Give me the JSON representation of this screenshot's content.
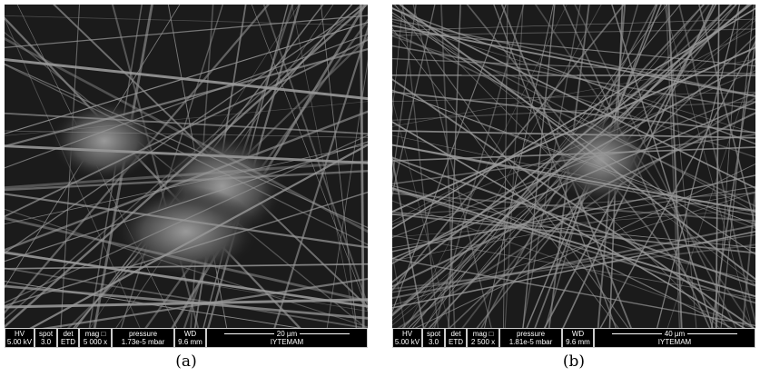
{
  "panels": [
    {
      "caption": "(a)",
      "info_bar": {
        "columns": [
          {
            "header": "HV",
            "value": "5.00 kV"
          },
          {
            "header": "spot",
            "value": "3.0"
          },
          {
            "header": "det",
            "value": "ETD"
          },
          {
            "header": "mag □",
            "value": "5 000 x"
          },
          {
            "header": "pressure",
            "value": "1.73e-5 mbar"
          },
          {
            "header": "WD",
            "value": "9.6 mm"
          }
        ],
        "scale_bar": "20 µm",
        "facility": "IYTEMAM"
      }
    },
    {
      "caption": "(b)",
      "info_bar": {
        "columns": [
          {
            "header": "HV",
            "value": "5.00 kV"
          },
          {
            "header": "spot",
            "value": "3.0"
          },
          {
            "header": "det",
            "value": "ETD"
          },
          {
            "header": "mag □",
            "value": "2 500 x"
          },
          {
            "header": "pressure",
            "value": "1.81e-5 mbar"
          },
          {
            "header": "WD",
            "value": "9.6 mm"
          }
        ],
        "scale_bar": "40 µm",
        "facility": "IYTEMAM"
      }
    }
  ]
}
